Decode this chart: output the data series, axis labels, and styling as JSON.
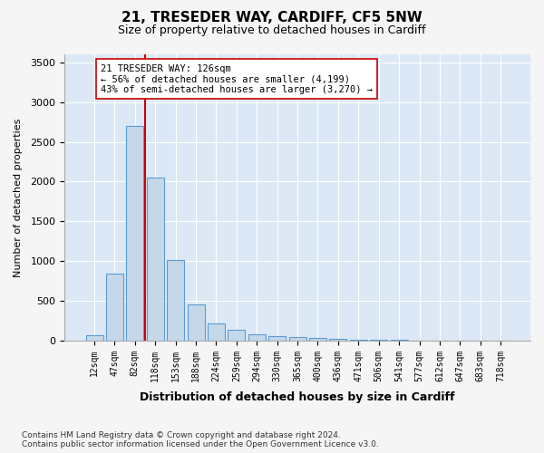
{
  "title1": "21, TRESEDER WAY, CARDIFF, CF5 5NW",
  "title2": "Size of property relative to detached houses in Cardiff",
  "xlabel": "Distribution of detached houses by size in Cardiff",
  "ylabel": "Number of detached properties",
  "bar_labels": [
    "12sqm",
    "47sqm",
    "82sqm",
    "118sqm",
    "153sqm",
    "188sqm",
    "224sqm",
    "259sqm",
    "294sqm",
    "330sqm",
    "365sqm",
    "400sqm",
    "436sqm",
    "471sqm",
    "506sqm",
    "541sqm",
    "577sqm",
    "612sqm",
    "647sqm",
    "683sqm",
    "718sqm"
  ],
  "bar_values": [
    70,
    840,
    2700,
    2050,
    1010,
    450,
    210,
    140,
    80,
    60,
    45,
    35,
    25,
    10,
    8,
    6,
    4,
    3,
    2,
    2,
    1
  ],
  "bar_color": "#c5d8ea",
  "bar_edge_color": "#5b9bd5",
  "vline_x": 2.5,
  "vline_color": "#cc0000",
  "annotation_text": "21 TRESEDER WAY: 126sqm\n← 56% of detached houses are smaller (4,199)\n43% of semi-detached houses are larger (3,270) →",
  "annotation_box_color": "#ffffff",
  "annotation_box_edge": "#cc0000",
  "ylim": [
    0,
    3600
  ],
  "yticks": [
    0,
    500,
    1000,
    1500,
    2000,
    2500,
    3000,
    3500
  ],
  "footnote": "Contains HM Land Registry data © Crown copyright and database right 2024.\nContains public sector information licensed under the Open Government Licence v3.0.",
  "fig_bg_color": "#f5f5f5",
  "plot_bg_color": "#dce8f5"
}
